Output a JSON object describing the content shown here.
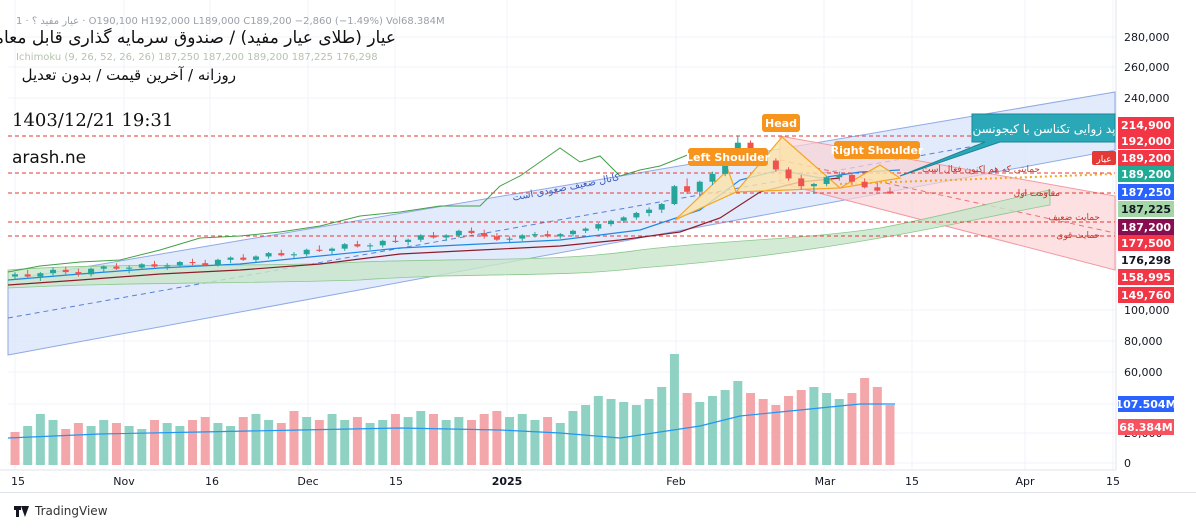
{
  "header": {
    "info_line": "1 · عیار مفید ؟ · O190,100  H192,000  L189,000  C189,200  −2,860 (−1.49%)  Vol68.384M",
    "ichimoku_line": "Ichimoku (9, 26, 52, 26, 26)  187,250  187,200  189,200  187,225  176,298",
    "title": "عیار (طلای عیار مفید) / صندوق سرمایه گذاری قابل معامله",
    "subtitle": "روزانه / آخرین قیمت / بدون تعدیل",
    "datetime": "1403/12/21 19:31",
    "watermark": "arash.ne"
  },
  "brand": {
    "name": "TradingView"
  },
  "chart_data": {
    "type": "candlestick",
    "symbol": "عیار",
    "x_labels": [
      "15",
      "Nov",
      "16",
      "Dec",
      "15",
      "2025",
      "Feb",
      "Mar",
      "15",
      "Apr",
      "15"
    ],
    "y_ticks": [
      280000,
      260000,
      240000,
      100000,
      80000,
      60000,
      40000,
      20000,
      0
    ],
    "y_tick_labels": [
      "280,000",
      "260,000",
      "240,000",
      "100,000",
      "80,000",
      "60,000",
      "40,000",
      "20,000",
      "0"
    ],
    "ohlc": {
      "open": 190100,
      "high": 192000,
      "low": 189000,
      "close": 189200,
      "change": -2860,
      "change_pct": -1.49
    },
    "volume": "68.384M",
    "volume_ma": "107.504M",
    "price_levels": [
      {
        "label": "214,900",
        "color": "#f23645"
      },
      {
        "label": "192,000",
        "color": "#f23645"
      },
      {
        "label": "189,200",
        "color": "#f23645"
      },
      {
        "label": "189,200",
        "color": "#22ab94"
      },
      {
        "label": "187,250",
        "color": "#2962ff"
      },
      {
        "label": "187,225",
        "color": "#a5d6a7"
      },
      {
        "label": "187,200",
        "color": "#880e4f"
      },
      {
        "label": "177,500",
        "color": "#f23645"
      },
      {
        "label": "176,298",
        "color": "#ffffff"
      },
      {
        "label": "158,995",
        "color": "#f23645"
      },
      {
        "label": "149,760",
        "color": "#f23645"
      }
    ],
    "volume_labels": [
      {
        "label": "107.504M",
        "color": "#2962ff"
      },
      {
        "label": "68.384M",
        "color": "#f7525f"
      }
    ],
    "symbol_tag": "عیار",
    "pattern_labels": [
      "Head",
      "Left Shoulder",
      "Right Shoulder"
    ],
    "callout": "پد زوایی تکناسن با کیجونسن",
    "annotations": [
      "کانال ضعیف صعودی است",
      "حمایتی که هم اکنون فعال است",
      "مقاومت اول",
      "حمایت ضعیف",
      "حمایت قوی"
    ],
    "candles": [
      [
        152000,
        154000,
        150500,
        153000
      ],
      [
        153000,
        155000,
        151500,
        152000
      ],
      [
        152000,
        154000,
        150000,
        153500
      ],
      [
        153500,
        156000,
        152500,
        155000
      ],
      [
        155000,
        156500,
        153000,
        154000
      ],
      [
        154000,
        155500,
        152000,
        153000
      ],
      [
        153000,
        156000,
        152000,
        155500
      ],
      [
        155500,
        157000,
        154000,
        156500
      ],
      [
        156500,
        158000,
        155000,
        155500
      ],
      [
        155500,
        157000,
        153500,
        156000
      ],
      [
        156000,
        158000,
        155000,
        157500
      ],
      [
        157500,
        159000,
        156000,
        156500
      ],
      [
        156500,
        158000,
        155000,
        157000
      ],
      [
        157000,
        159000,
        156000,
        158500
      ],
      [
        158500,
        160000,
        157000,
        158000
      ],
      [
        158000,
        159500,
        156500,
        157000
      ],
      [
        157000,
        160000,
        156500,
        159500
      ],
      [
        159500,
        161000,
        158000,
        160500
      ],
      [
        160500,
        162000,
        159000,
        159500
      ],
      [
        159500,
        161500,
        158500,
        161000
      ],
      [
        161000,
        163000,
        160000,
        162500
      ],
      [
        162500,
        164000,
        161000,
        161500
      ],
      [
        161500,
        163000,
        160000,
        162000
      ],
      [
        162000,
        164500,
        161000,
        164000
      ],
      [
        164000,
        166000,
        163000,
        163500
      ],
      [
        163500,
        165000,
        162000,
        164500
      ],
      [
        164500,
        167000,
        163500,
        166500
      ],
      [
        166500,
        168000,
        165000,
        165500
      ],
      [
        165500,
        167000,
        164000,
        166000
      ],
      [
        166000,
        168500,
        165000,
        168000
      ],
      [
        168000,
        170000,
        167000,
        167500
      ],
      [
        167500,
        169000,
        166000,
        168500
      ],
      [
        168500,
        171000,
        167500,
        170500
      ],
      [
        170500,
        172000,
        169000,
        169500
      ],
      [
        169500,
        171000,
        168000,
        170500
      ],
      [
        170500,
        173000,
        169500,
        172500
      ],
      [
        172500,
        174000,
        171000,
        171500
      ],
      [
        171500,
        173000,
        169000,
        170000
      ],
      [
        170000,
        171500,
        168000,
        168500
      ],
      [
        168500,
        170000,
        167000,
        169000
      ],
      [
        169000,
        171000,
        168000,
        170500
      ],
      [
        170500,
        172000,
        169500,
        171000
      ],
      [
        171000,
        172500,
        169500,
        170000
      ],
      [
        170000,
        171500,
        169000,
        171000
      ],
      [
        171000,
        173000,
        170000,
        172500
      ],
      [
        172500,
        174000,
        171500,
        173500
      ],
      [
        173500,
        176000,
        172500,
        175500
      ],
      [
        175500,
        177500,
        174500,
        177000
      ],
      [
        177000,
        179000,
        176000,
        178500
      ],
      [
        178500,
        181000,
        177500,
        180500
      ],
      [
        180500,
        183000,
        179000,
        182000
      ],
      [
        182000,
        185000,
        180500,
        184500
      ],
      [
        184500,
        193000,
        184000,
        192500
      ],
      [
        192500,
        196000,
        189000,
        190000
      ],
      [
        190000,
        195000,
        188000,
        194500
      ],
      [
        194500,
        199000,
        193000,
        198000
      ],
      [
        198000,
        204000,
        197000,
        203500
      ],
      [
        203500,
        214900,
        203000,
        212000
      ],
      [
        212000,
        213000,
        206000,
        207000
      ],
      [
        207000,
        208500,
        203000,
        204000
      ],
      [
        204000,
        205000,
        199000,
        200000
      ],
      [
        200000,
        201000,
        195000,
        196000
      ],
      [
        196000,
        197500,
        191000,
        192500
      ],
      [
        192500,
        194000,
        189000,
        193500
      ],
      [
        193500,
        197000,
        192500,
        196500
      ],
      [
        196500,
        199000,
        195000,
        197500
      ],
      [
        197500,
        198500,
        193000,
        194500
      ],
      [
        194500,
        196000,
        191500,
        192000
      ],
      [
        192000,
        194000,
        190000,
        190500
      ],
      [
        190100,
        192000,
        189000,
        189200
      ]
    ],
    "volumes": [
      22,
      26,
      34,
      30,
      24,
      28,
      26,
      30,
      28,
      26,
      24,
      30,
      28,
      26,
      30,
      32,
      28,
      26,
      32,
      34,
      30,
      28,
      36,
      32,
      30,
      34,
      30,
      32,
      28,
      30,
      34,
      32,
      36,
      34,
      30,
      32,
      30,
      34,
      36,
      32,
      34,
      30,
      32,
      28,
      36,
      40,
      46,
      44,
      42,
      40,
      44,
      52,
      74,
      48,
      42,
      46,
      50,
      56,
      48,
      44,
      40,
      46,
      50,
      52,
      48,
      44,
      48,
      58,
      52,
      40
    ],
    "volume_up": [
      false,
      true,
      true,
      true,
      false,
      false,
      true,
      true,
      false,
      true,
      true,
      false,
      true,
      true,
      false,
      false,
      true,
      true,
      false,
      true,
      true,
      false,
      false,
      true,
      false,
      true,
      true,
      false,
      true,
      true,
      false,
      true,
      true,
      false,
      true,
      true,
      false,
      false,
      false,
      true,
      true,
      true,
      false,
      true,
      true,
      true,
      true,
      true,
      true,
      true,
      true,
      true,
      true,
      false,
      true,
      true,
      true,
      true,
      false,
      false,
      false,
      false,
      false,
      true,
      true,
      true,
      false,
      false,
      false,
      false
    ]
  }
}
